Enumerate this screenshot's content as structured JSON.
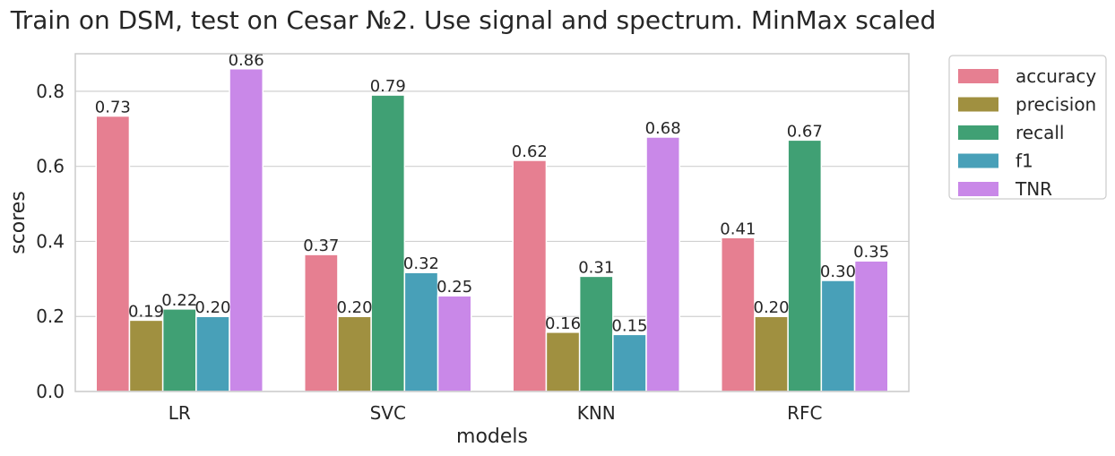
{
  "chart_data": {
    "type": "bar",
    "title": "Train on DSM, test on Cesar №2. Use signal and spectrum. MinMax scaled",
    "xlabel": "models",
    "ylabel": "scores",
    "categories": [
      "LR",
      "SVC",
      "KNN",
      "RFC"
    ],
    "ylim": [
      0,
      0.9
    ],
    "yticks": [
      0.0,
      0.2,
      0.4,
      0.6,
      0.8
    ],
    "ytick_labels": [
      "0.0",
      "0.2",
      "0.4",
      "0.6",
      "0.8"
    ],
    "grid": "horizontal",
    "legend_position": "outside-right",
    "series": [
      {
        "name": "accuracy",
        "color": "#e67f91",
        "values": [
          0.734,
          0.365,
          0.616,
          0.41
        ],
        "labels": [
          "0.73",
          "0.37",
          "0.62",
          "0.41"
        ]
      },
      {
        "name": "precision",
        "color": "#a09040",
        "values": [
          0.19,
          0.2,
          0.158,
          0.2
        ],
        "labels": [
          "0.19",
          "0.20",
          "0.16",
          "0.20"
        ]
      },
      {
        "name": "recall",
        "color": "#40a074",
        "values": [
          0.22,
          0.79,
          0.307,
          0.67
        ],
        "labels": [
          "0.22",
          "0.79",
          "0.31",
          "0.67"
        ]
      },
      {
        "name": "f1",
        "color": "#48a0b8",
        "values": [
          0.2,
          0.317,
          0.152,
          0.296
        ],
        "labels": [
          "0.20",
          "0.32",
          "0.15",
          "0.30"
        ]
      },
      {
        "name": "TNR",
        "color": "#c988e8",
        "values": [
          0.86,
          0.255,
          0.678,
          0.348
        ],
        "labels": [
          "0.86",
          "0.25",
          "0.68",
          "0.35"
        ]
      }
    ]
  }
}
